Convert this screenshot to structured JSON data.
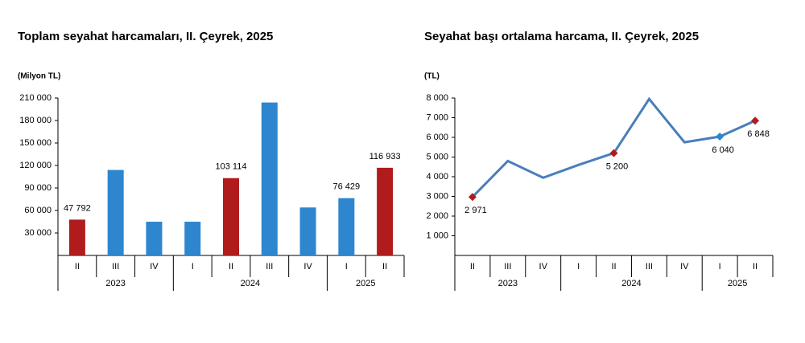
{
  "chart_data": [
    {
      "type": "bar",
      "title": "Toplam seyahat harcamaları, II. Çeyrek, 2025",
      "y_label": "(Milyon TL)",
      "categories": [
        "II",
        "III",
        "IV",
        "I",
        "II",
        "III",
        "IV",
        "I",
        "II"
      ],
      "years": [
        {
          "label": "2023",
          "count": 3
        },
        {
          "label": "2024",
          "count": 4
        },
        {
          "label": "2025",
          "count": 2
        }
      ],
      "values": [
        47792,
        114000,
        45000,
        45000,
        103114,
        204000,
        64000,
        76429,
        116933
      ],
      "value_labels": [
        "47 792",
        null,
        null,
        null,
        "103 114",
        null,
        null,
        "76 429",
        "116 933"
      ],
      "colors": [
        "#b01c1c",
        "#2e86cf",
        "#2e86cf",
        "#2e86cf",
        "#b01c1c",
        "#2e86cf",
        "#2e86cf",
        "#2e86cf",
        "#b01c1c"
      ],
      "ylim": [
        0,
        210000
      ],
      "yticks": [
        {
          "value": 30000,
          "label": "30 000"
        },
        {
          "value": 60000,
          "label": "60 000"
        },
        {
          "value": 90000,
          "label": "90 000"
        },
        {
          "value": 120000,
          "label": "120 000"
        },
        {
          "value": 150000,
          "label": "150 000"
        },
        {
          "value": 180000,
          "label": "180 000"
        },
        {
          "value": 210000,
          "label": "210 000"
        }
      ]
    },
    {
      "type": "line",
      "title": "Seyahat başı ortalama harcama, II. Çeyrek, 2025",
      "y_label": "(TL)",
      "categories": [
        "II",
        "III",
        "IV",
        "I",
        "II",
        "III",
        "IV",
        "I",
        "II"
      ],
      "years": [
        {
          "label": "2023",
          "count": 3
        },
        {
          "label": "2024",
          "count": 4
        },
        {
          "label": "2025",
          "count": 2
        }
      ],
      "values": [
        2971,
        4800,
        3950,
        4600,
        5200,
        7950,
        5750,
        6040,
        6848
      ],
      "value_labels": [
        "2 971",
        null,
        null,
        null,
        "5 200",
        null,
        null,
        "6 040",
        "6 848"
      ],
      "color": "#4a7ebb",
      "point_colors": [
        "#b01c1c",
        null,
        null,
        null,
        "#b01c1c",
        null,
        null,
        "#2e86cf",
        "#b01c1c"
      ],
      "ylim": [
        0,
        8000
      ],
      "yticks": [
        {
          "value": 1000,
          "label": "1 000"
        },
        {
          "value": 2000,
          "label": "2 000"
        },
        {
          "value": 3000,
          "label": "3 000"
        },
        {
          "value": 4000,
          "label": "4 000"
        },
        {
          "value": 5000,
          "label": "5 000"
        },
        {
          "value": 6000,
          "label": "6 000"
        },
        {
          "value": 7000,
          "label": "7 000"
        },
        {
          "value": 8000,
          "label": "8 000"
        }
      ]
    }
  ]
}
